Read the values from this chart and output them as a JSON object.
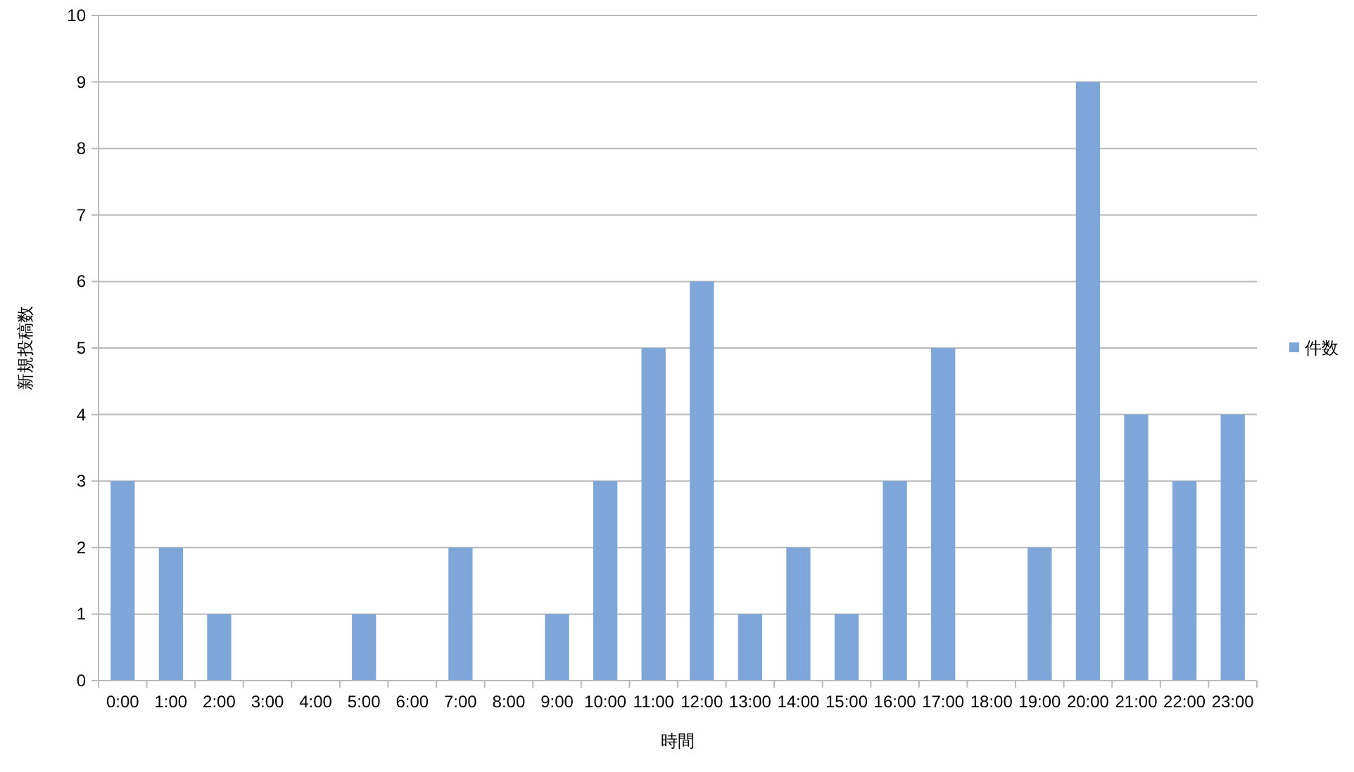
{
  "chart_data": {
    "type": "bar",
    "xlabel": "時間",
    "ylabel": "新規投稿数",
    "categories": [
      "0:00",
      "1:00",
      "2:00",
      "3:00",
      "4:00",
      "5:00",
      "6:00",
      "7:00",
      "8:00",
      "9:00",
      "10:00",
      "11:00",
      "12:00",
      "13:00",
      "14:00",
      "15:00",
      "16:00",
      "17:00",
      "18:00",
      "19:00",
      "20:00",
      "21:00",
      "22:00",
      "23:00"
    ],
    "series": [
      {
        "name": "件数",
        "color": "#7ea6d8",
        "values": [
          3,
          2,
          1,
          0,
          0,
          1,
          0,
          2,
          0,
          1,
          3,
          5,
          6,
          1,
          2,
          1,
          3,
          5,
          0,
          2,
          9,
          4,
          3,
          4
        ]
      }
    ],
    "ylim": [
      0,
      10
    ],
    "yticks": [
      0,
      1,
      2,
      3,
      4,
      5,
      6,
      7,
      8,
      9,
      10
    ],
    "grid": "y",
    "legend": "right"
  }
}
